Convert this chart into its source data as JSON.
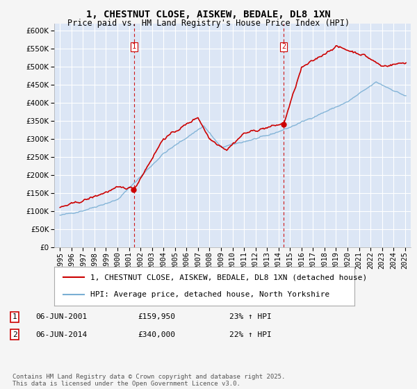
{
  "title": "1, CHESTNUT CLOSE, AISKEW, BEDALE, DL8 1XN",
  "subtitle": "Price paid vs. HM Land Registry's House Price Index (HPI)",
  "legend_line1": "1, CHESTNUT CLOSE, AISKEW, BEDALE, DL8 1XN (detached house)",
  "legend_line2": "HPI: Average price, detached house, North Yorkshire",
  "sale1_date": "06-JUN-2001",
  "sale1_price": "£159,950",
  "sale1_hpi": "23% ↑ HPI",
  "sale1_year": 2001.44,
  "sale1_value": 159950,
  "sale2_date": "06-JUN-2014",
  "sale2_price": "£340,000",
  "sale2_hpi": "22% ↑ HPI",
  "sale2_year": 2014.44,
  "sale2_value": 340000,
  "copyright": "Contains HM Land Registry data © Crown copyright and database right 2025.\nThis data is licensed under the Open Government Licence v3.0.",
  "ylim": [
    0,
    620000
  ],
  "yticks": [
    0,
    50000,
    100000,
    150000,
    200000,
    250000,
    300000,
    350000,
    400000,
    450000,
    500000,
    550000,
    600000
  ],
  "xlim": [
    1994.5,
    2025.5
  ],
  "plot_bg": "#dce6f5",
  "fig_bg": "#f5f5f5",
  "grid_color": "#ffffff",
  "red_line_color": "#cc0000",
  "blue_line_color": "#7aafd4",
  "vline_color": "#cc0000",
  "title_fontsize": 10,
  "subtitle_fontsize": 8.5,
  "tick_fontsize": 7.5,
  "legend_fontsize": 8,
  "note_fontsize": 6.5
}
